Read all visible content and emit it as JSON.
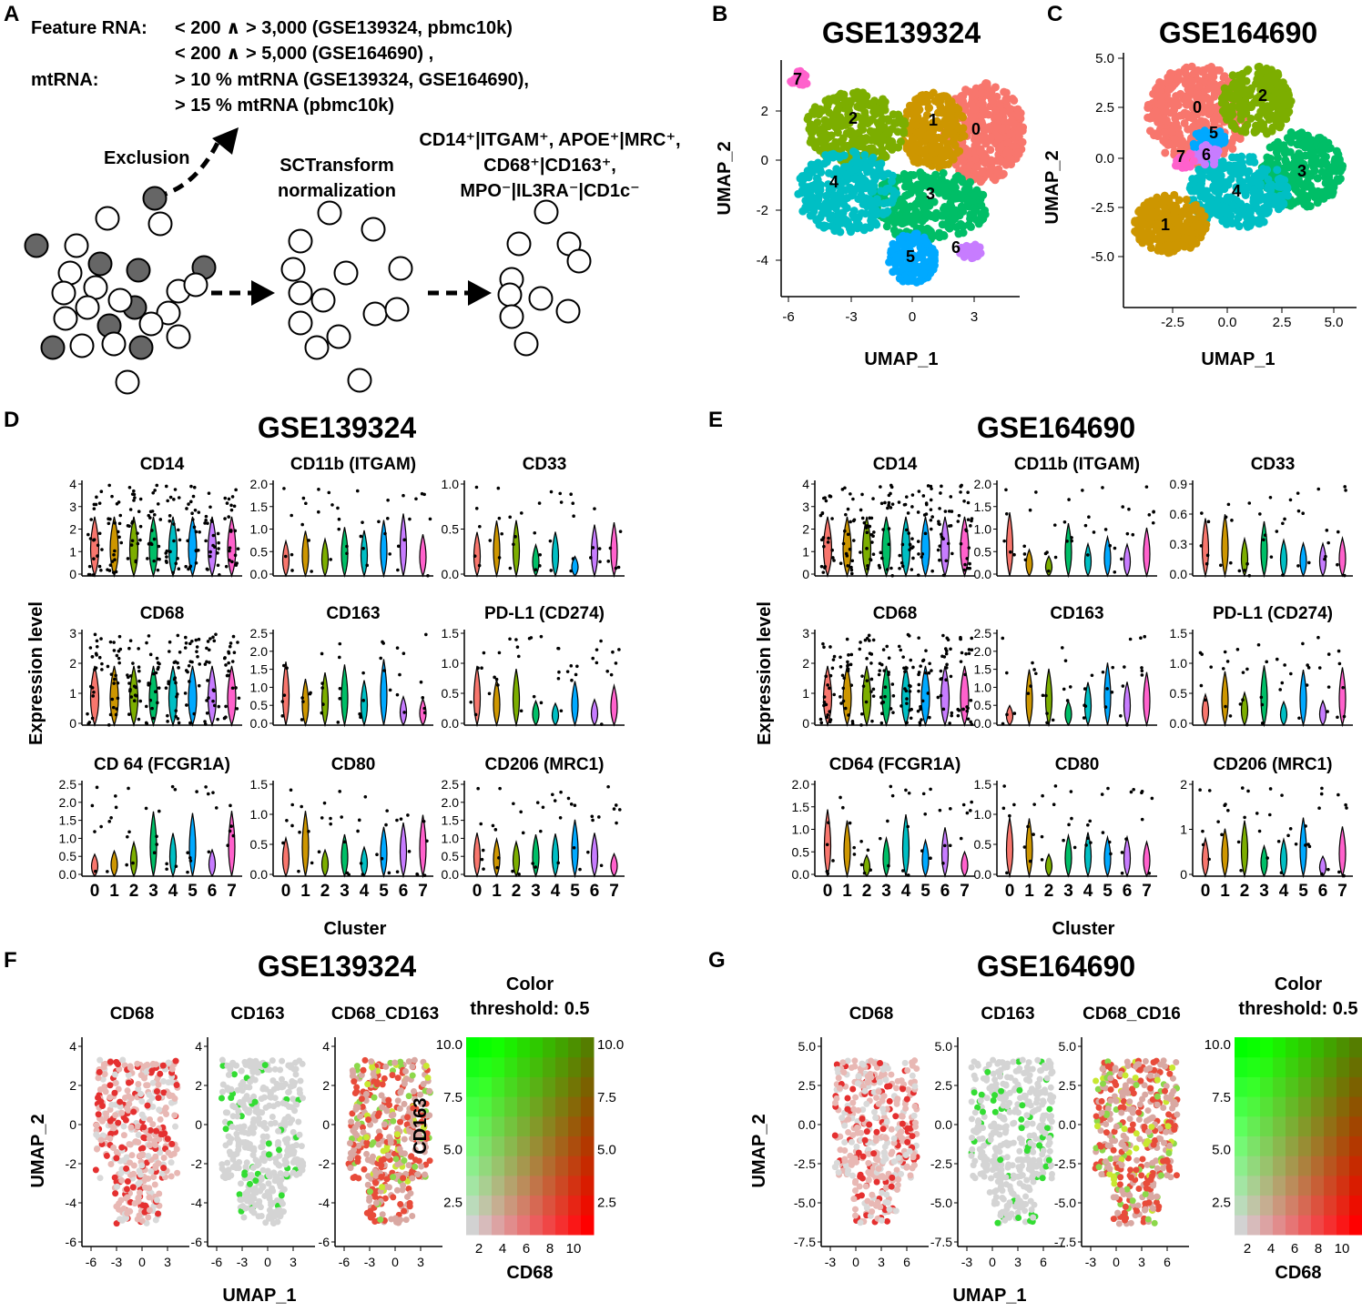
{
  "panels": {
    "A": {
      "letter": "A",
      "filter_lines": [
        {
          "label": "Feature RNA:",
          "value": "< 200 ∧ > 3,000 (GSE139324, pbmc10k)"
        },
        {
          "label": "",
          "value": "< 200 ∧ > 5,000 (GSE164690) ,"
        },
        {
          "label": "mtRNA:",
          "value": "> 10 % mtRNA (GSE139324, GSE164690),"
        },
        {
          "label": "",
          "value": "> 15 % mtRNA (pbmc10k)"
        }
      ],
      "exclusion": "Exclusion",
      "sctransform": [
        "SCTransform",
        "normalization"
      ],
      "markers": [
        "CD14⁺|ITGAM⁺, APOE⁺|MRC⁺,",
        "CD68⁺|CD163⁺,",
        "MPO⁻|IL3RA⁻|CD1c⁻"
      ]
    },
    "B": {
      "letter": "B",
      "title": "GSE139324",
      "xlabel": "UMAP_1",
      "ylabel": "UMAP_2",
      "xticks": [
        "-6",
        "-3",
        "0",
        "3"
      ],
      "yticks": [
        "2",
        "0",
        "-2",
        "-4"
      ],
      "clusters": [
        "0",
        "1",
        "2",
        "3",
        "4",
        "5",
        "6",
        "7"
      ]
    },
    "C": {
      "letter": "C",
      "title": "GSE164690",
      "xlabel": "UMAP_1",
      "ylabel": "UMAP_2",
      "xticks": [
        "-2.5",
        "0.0",
        "2.5",
        "5.0"
      ],
      "yticks": [
        "5.0",
        "2.5",
        "0.0",
        "-2.5",
        "-5.0"
      ],
      "clusters": [
        "0",
        "1",
        "2",
        "3",
        "4",
        "5",
        "6",
        "7"
      ]
    },
    "D": {
      "letter": "D",
      "title": "GSE139324",
      "ylabel": "Expression level",
      "xlabel": "Cluster",
      "subplots": [
        "CD14",
        "CD11b (ITGAM)",
        "CD33",
        "CD68",
        "CD163",
        "PD-L1 (CD274)",
        "CD 64 (FCGR1A)",
        "CD80",
        "CD206 (MRC1)"
      ]
    },
    "E": {
      "letter": "E",
      "title": "GSE164690",
      "ylabel": "Expression level",
      "xlabel": "Cluster",
      "subplots": [
        "CD14",
        "CD11b (ITGAM)",
        "CD33",
        "CD68",
        "CD163",
        "PD-L1 (CD274)",
        "CD64 (FCGR1A)",
        "CD80",
        "CD206 (MRC1)"
      ]
    },
    "F": {
      "letter": "F",
      "title": "GSE139324",
      "subplots": [
        "CD68",
        "CD163",
        "CD68_CD163"
      ],
      "ylabel": "UMAP_2",
      "xlabel": "UMAP_1",
      "xticks": [
        "-6",
        "-3",
        "0",
        "3"
      ],
      "yticks": [
        "4",
        "2",
        "0",
        "-2",
        "-4",
        "-6"
      ],
      "legend_title": [
        "Color",
        "threshold: 0.5"
      ],
      "legend_xlabel": "CD68",
      "legend_ylabel": "CD163",
      "legend_xticks": [
        "2",
        "4",
        "6",
        "8",
        "10"
      ],
      "legend_yticks": [
        "10.0",
        "7.5",
        "5.0",
        "2.5"
      ]
    },
    "G": {
      "letter": "G",
      "title": "GSE164690",
      "subplots": [
        "CD68",
        "CD163",
        "CD68_CD16"
      ],
      "ylabel": "UMAP_2",
      "xlabel": "UMAP_1",
      "xticks": [
        "-3",
        "0",
        "3",
        "6"
      ],
      "yticks": [
        "5.0",
        "2.5",
        "0.0",
        "-2.5",
        "-5.0",
        "-7.5"
      ],
      "legend_title": [
        "Color",
        "threshold: 0.5"
      ],
      "legend_xlabel": "CD68",
      "legend_xticks": [
        "2",
        "4",
        "6",
        "8",
        "10"
      ],
      "legend_yticks": [
        "10.0",
        "7.5",
        "5.0",
        "2.5"
      ]
    }
  },
  "colors": {
    "c0": "#F8766D",
    "c1": "#CD9600",
    "c2": "#7CAE00",
    "c3": "#00BE67",
    "c4": "#00BFC4",
    "c5": "#00A9FF",
    "c6": "#C77CFF",
    "c7": "#FF61CC"
  },
  "violin_ticks": {
    "CD14": [
      "4",
      "3",
      "2",
      "1",
      "0"
    ],
    "CD11b": [
      "2.0",
      "1.5",
      "1.0",
      "0.5",
      "0.0"
    ],
    "CD33": [
      "1.0",
      "0.5",
      "0.0"
    ],
    "CD33_E": [
      "0.9",
      "0.6",
      "0.3",
      "0.0"
    ],
    "CD68": [
      "3",
      "2",
      "1",
      "0"
    ],
    "CD163": [
      "2.5",
      "2.0",
      "1.5",
      "1.0",
      "0.5",
      "0.0"
    ],
    "PDL1": [
      "1.5",
      "1.0",
      "0.5",
      "0.0"
    ],
    "CD64": [
      "2.5",
      "2.0",
      "1.5",
      "1.0",
      "0.5",
      "0.0"
    ],
    "CD64_E": [
      "2.0",
      "1.5",
      "1.0",
      "0.5",
      "0.0"
    ],
    "CD80": [
      "1.5",
      "1.0",
      "0.5",
      "0.0"
    ],
    "CD206": [
      "2.5",
      "2.0",
      "1.5",
      "1.0",
      "0.5",
      "0.0"
    ],
    "CD206_E": [
      "2",
      "1",
      "0"
    ],
    "clusters": [
      "0",
      "1",
      "2",
      "3",
      "4",
      "5",
      "6",
      "7"
    ]
  }
}
